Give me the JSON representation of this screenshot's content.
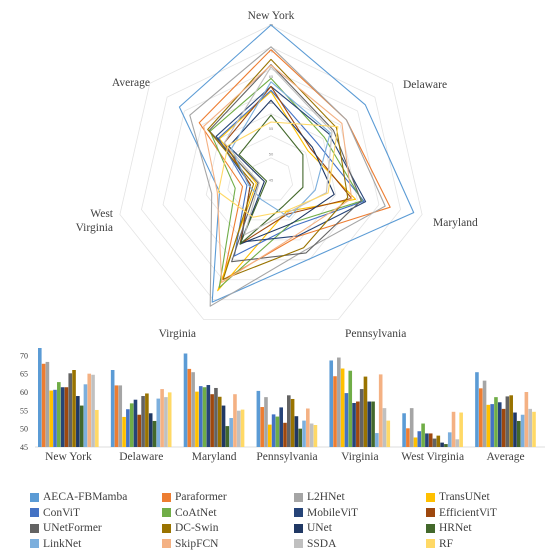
{
  "chart_data": [
    {
      "type": "radar",
      "axes": [
        "New York",
        "Delaware",
        "Maryland",
        "Pennsylvania",
        "Virginia",
        "West Virginia",
        "Average"
      ],
      "ylim": [
        45,
        72
      ],
      "ticks": [
        45,
        50,
        55,
        60,
        65,
        70,
        75
      ],
      "grid": true
    },
    {
      "type": "bar",
      "categories": [
        "New York",
        "Delaware",
        "Maryland",
        "Pennsylvania",
        "Virginia",
        "West Virginia",
        "Average"
      ],
      "ylim": [
        45,
        72
      ],
      "yticks": [
        45,
        50,
        55,
        60,
        65,
        70
      ],
      "grid": false,
      "legend": "bottom",
      "series": [
        {
          "name": "AECA-FBMamba",
          "color": "#5b9bd5",
          "values": [
            72.0,
            66.0,
            70.5,
            60.3,
            68.6,
            54.2,
            65.4
          ]
        },
        {
          "name": "Paraformer",
          "color": "#ed7d31",
          "values": [
            67.7,
            61.8,
            66.3,
            55.9,
            64.3,
            50.1,
            61.0
          ]
        },
        {
          "name": "L2HNet",
          "color": "#a5a5a5",
          "values": [
            68.2,
            61.8,
            65.4,
            58.6,
            69.4,
            55.6,
            63.1
          ]
        },
        {
          "name": "TransUNet",
          "color": "#ffc000",
          "values": [
            60.4,
            53.2,
            60.1,
            51.1,
            66.4,
            47.6,
            56.5
          ]
        },
        {
          "name": "ConViT",
          "color": "#4472c4",
          "values": [
            60.6,
            55.3,
            61.6,
            53.9,
            59.7,
            49.3,
            56.7
          ]
        },
        {
          "name": "CoAtNet",
          "color": "#70ad47",
          "values": [
            62.7,
            56.9,
            61.3,
            53.3,
            65.8,
            51.4,
            58.6
          ]
        },
        {
          "name": "MobileViT",
          "color": "#264478",
          "values": [
            61.3,
            57.9,
            61.9,
            55.8,
            57.0,
            48.7,
            57.2
          ]
        },
        {
          "name": "EfficientViT",
          "color": "#9e480e",
          "values": [
            61.3,
            53.8,
            59.4,
            51.6,
            57.4,
            48.7,
            55.4
          ]
        },
        {
          "name": "UNetFormer",
          "color": "#636363",
          "values": [
            65.1,
            58.9,
            61.1,
            59.1,
            60.8,
            47.3,
            58.8
          ]
        },
        {
          "name": "DC-Swin",
          "color": "#997300",
          "values": [
            66.0,
            59.6,
            58.7,
            58.1,
            64.2,
            48.1,
            59.1
          ]
        },
        {
          "name": "UNet",
          "color": "#203864",
          "values": [
            58.9,
            54.2,
            56.3,
            53.4,
            57.4,
            46.2,
            54.4
          ]
        },
        {
          "name": "HRNet",
          "color": "#43682b",
          "values": [
            56.3,
            52.1,
            50.7,
            50.0,
            57.4,
            45.8,
            52.1
          ]
        },
        {
          "name": "LinkNet",
          "color": "#7cafdd",
          "values": [
            62.1,
            58.2,
            52.9,
            52.2,
            48.8,
            49.0,
            53.8
          ]
        },
        {
          "name": "SkipFCN",
          "color": "#f4b183",
          "values": [
            65.0,
            60.8,
            59.4,
            55.5,
            64.8,
            54.6,
            60.0
          ]
        },
        {
          "name": "SSDA",
          "color": "#c0c0c0",
          "values": [
            64.7,
            58.6,
            54.9,
            51.4,
            55.6,
            47.1,
            55.4
          ]
        },
        {
          "name": "RF",
          "color": "#ffd966",
          "values": [
            55.1,
            59.9,
            55.2,
            51.0,
            52.2,
            54.4,
            54.6
          ]
        }
      ]
    }
  ]
}
